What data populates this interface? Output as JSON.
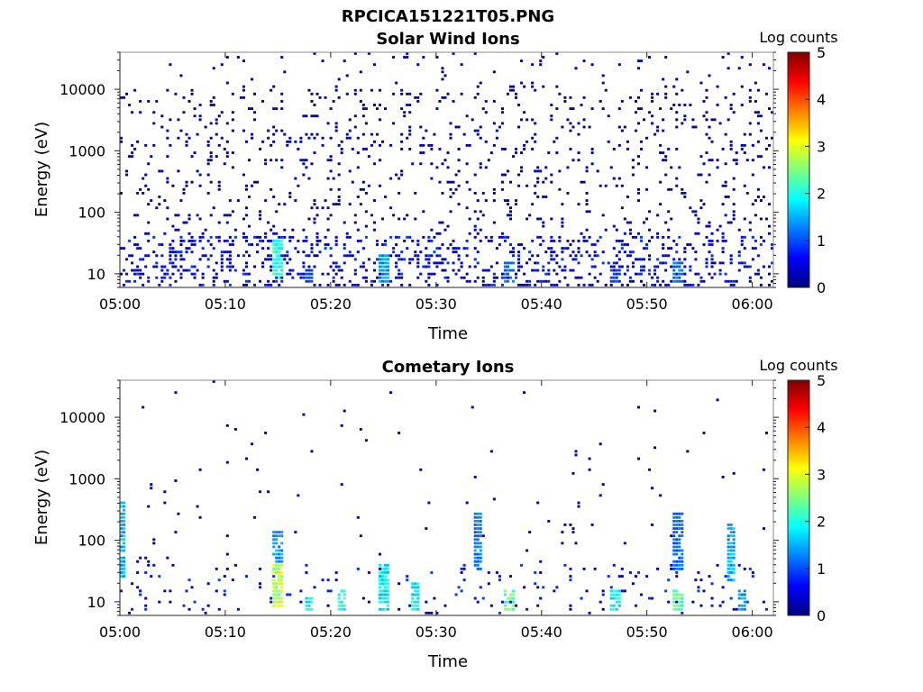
{
  "figure_title": "RPCICA151221T05.PNG",
  "colormap": [
    "#00007f",
    "#0000ff",
    "#007fff",
    "#00ffff",
    "#7fff7f",
    "#ffff00",
    "#ff7f00",
    "#ff0000",
    "#7f0000"
  ],
  "chart_data": [
    {
      "type": "heatmap",
      "title": "Solar Wind Ions",
      "xlabel": "Time",
      "ylabel": "Energy (eV)",
      "y_scale": "log",
      "xlim": [
        "05:00",
        "06:02"
      ],
      "ylim": [
        6,
        40000
      ],
      "x_ticks": [
        "05:00",
        "05:10",
        "05:20",
        "05:30",
        "05:40",
        "05:50",
        "06:00"
      ],
      "y_ticks": [
        10,
        100,
        1000,
        10000
      ],
      "y_tick_labels": [
        "10",
        "100",
        "1000",
        "10000"
      ],
      "colorbar": {
        "label": "Log counts",
        "range": [
          0,
          5
        ],
        "ticks": [
          "0",
          "1",
          "2",
          "3",
          "4",
          "5"
        ]
      },
      "background_density": 0.24,
      "low_energy_density": 0.5,
      "hotspots": [
        {
          "time": "05:15",
          "e_low": 8,
          "e_high": 35,
          "value": 2.2
        },
        {
          "time": "05:18",
          "e_low": 7,
          "e_high": 12,
          "value": 1.0
        },
        {
          "time": "05:25",
          "e_low": 7,
          "e_high": 20,
          "value": 1.5
        },
        {
          "time": "05:37",
          "e_low": 7,
          "e_high": 15,
          "value": 1.3
        },
        {
          "time": "05:47",
          "e_low": 7,
          "e_high": 12,
          "value": 1.0
        },
        {
          "time": "05:53",
          "e_low": 7,
          "e_high": 15,
          "value": 1.3
        }
      ]
    },
    {
      "type": "heatmap",
      "title": "Cometary Ions",
      "xlabel": "Time",
      "ylabel": "Energy (eV)",
      "y_scale": "log",
      "xlim": [
        "05:00",
        "06:02"
      ],
      "ylim": [
        6,
        40000
      ],
      "x_ticks": [
        "05:00",
        "05:10",
        "05:20",
        "05:30",
        "05:40",
        "05:50",
        "06:00"
      ],
      "y_ticks": [
        10,
        100,
        1000,
        10000
      ],
      "y_tick_labels": [
        "10",
        "100",
        "1000",
        "10000"
      ],
      "colorbar": {
        "label": "Log counts",
        "range": [
          0,
          5
        ],
        "ticks": [
          "0",
          "1",
          "2",
          "3",
          "4",
          "5"
        ]
      },
      "background_density": 0.025,
      "low_energy_density": 0.12,
      "hotspots": [
        {
          "time": "05:00",
          "e_low": 25,
          "e_high": 400,
          "value": 1.6
        },
        {
          "time": "05:15",
          "e_low": 8,
          "e_high": 40,
          "value": 3.0
        },
        {
          "time": "05:15",
          "e_low": 40,
          "e_high": 150,
          "value": 1.5
        },
        {
          "time": "05:18",
          "e_low": 7,
          "e_high": 12,
          "value": 2.0
        },
        {
          "time": "05:21",
          "e_low": 7,
          "e_high": 15,
          "value": 2.2
        },
        {
          "time": "05:25",
          "e_low": 7,
          "e_high": 40,
          "value": 2.0
        },
        {
          "time": "05:28",
          "e_low": 7,
          "e_high": 20,
          "value": 2.0
        },
        {
          "time": "05:34",
          "e_low": 30,
          "e_high": 300,
          "value": 1.3
        },
        {
          "time": "05:37",
          "e_low": 7,
          "e_high": 15,
          "value": 2.6
        },
        {
          "time": "05:47",
          "e_low": 7,
          "e_high": 15,
          "value": 2.0
        },
        {
          "time": "05:53",
          "e_low": 7,
          "e_high": 15,
          "value": 2.4
        },
        {
          "time": "05:53",
          "e_low": 30,
          "e_high": 300,
          "value": 1.2
        },
        {
          "time": "05:58",
          "e_low": 20,
          "e_high": 200,
          "value": 1.6
        },
        {
          "time": "05:59",
          "e_low": 7,
          "e_high": 15,
          "value": 1.5
        }
      ]
    }
  ]
}
